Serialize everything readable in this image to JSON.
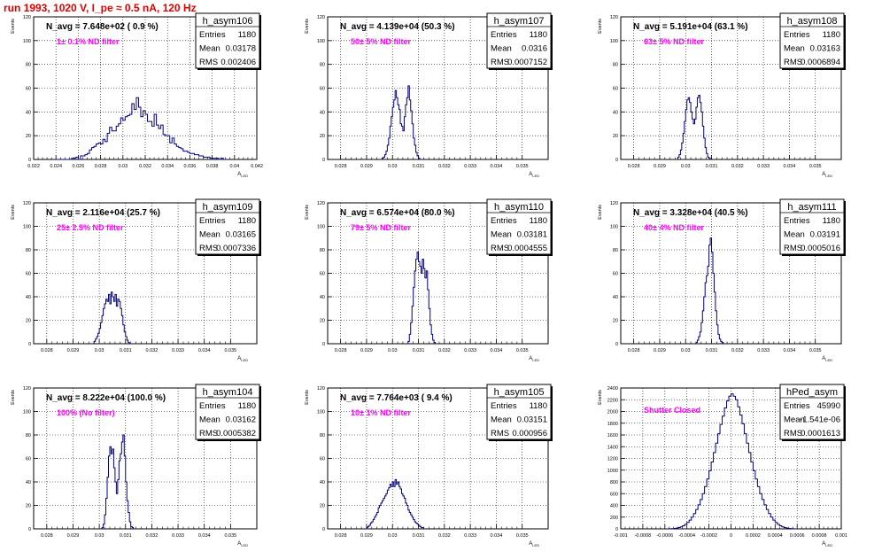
{
  "page_title": "run 1993,  1020 V, I_pe ≈ 0.5 nA, 120 Hz",
  "chart_data": [
    {
      "type": "histogram",
      "title": "h_asym106",
      "navg": "N_avg = 7.648e+02 ( 0.9 %)",
      "note": "1± 0.1% ND filter",
      "stats": {
        "Entries": "1180",
        "Mean": "0.03178",
        "RMS": "0.002406"
      },
      "ylabel": "Events",
      "xlabel": "A_LED",
      "xlim": [
        0.022,
        0.042
      ],
      "ylim": [
        0,
        120
      ],
      "xticks": [
        "0.022",
        "0.024",
        "0.026",
        "0.028",
        "0.03",
        "0.032",
        "0.034",
        "0.036",
        "0.038",
        "0.04",
        "0.042"
      ],
      "yticks": [
        "0",
        "20",
        "40",
        "60",
        "80",
        "100",
        "120"
      ],
      "bins": {
        "start": 0.024,
        "width": 0.0002,
        "values": [
          0,
          0,
          0,
          0,
          0,
          0,
          0,
          1,
          1,
          2,
          0,
          3,
          3,
          4,
          5,
          8,
          10,
          11,
          13,
          14,
          13,
          17,
          15,
          22,
          27,
          24,
          24,
          28,
          30,
          35,
          33,
          36,
          37,
          38,
          47,
          42,
          52,
          44,
          36,
          41,
          38,
          32,
          32,
          28,
          38,
          29,
          26,
          29,
          21,
          20,
          20,
          14,
          18,
          13,
          11,
          10,
          9,
          7,
          7,
          6,
          5,
          5,
          4,
          4,
          3,
          3,
          2,
          2,
          2,
          1,
          1,
          1,
          1,
          0,
          1,
          0
        ]
      }
    },
    {
      "type": "histogram",
      "title": "h_asym107",
      "navg": "N_avg = 4.139e+04 (50.3 %)",
      "note": "50± 5% ND filter",
      "stats": {
        "Entries": "1180",
        "Mean": "0.0316",
        "RMS": "0.0007152"
      },
      "ylabel": "Events",
      "xlabel": "A_LED",
      "xlim": [
        0.0275,
        0.036
      ],
      "ylim": [
        0,
        120
      ],
      "xticks": [
        "0.028",
        "0.029",
        "0.03",
        "0.031",
        "0.032",
        "0.033",
        "0.034",
        "0.035"
      ],
      "yticks": [
        "0",
        "20",
        "40",
        "60",
        "80",
        "100",
        "120"
      ],
      "bins": {
        "start": 0.0296,
        "width": 5e-05,
        "values": [
          1,
          2,
          4,
          7,
          12,
          18,
          28,
          36,
          44,
          50,
          58,
          52,
          46,
          42,
          30,
          28,
          24,
          36,
          46,
          52,
          62,
          50,
          41,
          30,
          18,
          12,
          6,
          3,
          1
        ]
      }
    },
    {
      "type": "histogram",
      "title": "h_asym108",
      "navg": "N_avg = 5.191e+04 (63.1 %)",
      "note": "63± 5% ND filter",
      "stats": {
        "Entries": "1180",
        "Mean": "0.03163",
        "RMS": "0.0006894"
      },
      "ylabel": "Events",
      "xlabel": "A_LED",
      "xlim": [
        0.0275,
        0.036
      ],
      "ylim": [
        0,
        120
      ],
      "xticks": [
        "0.028",
        "0.029",
        "0.03",
        "0.031",
        "0.032",
        "0.033",
        "0.034",
        "0.035"
      ],
      "yticks": [
        "0",
        "20",
        "40",
        "60",
        "80",
        "100",
        "120"
      ],
      "bins": {
        "start": 0.0297,
        "width": 5e-05,
        "values": [
          2,
          4,
          8,
          14,
          22,
          32,
          42,
          50,
          52,
          48,
          40,
          34,
          30,
          34,
          44,
          52,
          54,
          48,
          40,
          28,
          18,
          10,
          5,
          2,
          1
        ]
      }
    },
    {
      "type": "histogram",
      "title": "h_asym109",
      "navg": "N_avg = 2.116e+04 (25.7 %)",
      "note": "25± 2.5% ND filter",
      "stats": {
        "Entries": "1180",
        "Mean": "0.03165",
        "RMS": "0.0007336"
      },
      "ylabel": "Events",
      "xlabel": "A_LED",
      "xlim": [
        0.0275,
        0.036
      ],
      "ylim": [
        0,
        120
      ],
      "xticks": [
        "0.028",
        "0.029",
        "0.03",
        "0.031",
        "0.032",
        "0.033",
        "0.034",
        "0.035"
      ],
      "yticks": [
        "0",
        "20",
        "40",
        "60",
        "80",
        "100",
        "120"
      ],
      "bins": {
        "start": 0.0298,
        "width": 5e-05,
        "values": [
          2,
          4,
          6,
          9,
          13,
          18,
          24,
          30,
          34,
          38,
          36,
          42,
          34,
          44,
          40,
          36,
          42,
          32,
          38,
          36,
          30,
          24,
          16,
          10,
          6,
          3,
          1
        ]
      }
    },
    {
      "type": "histogram",
      "title": "h_asym110",
      "navg": "N_avg = 6.574e+04 (80.0 %)",
      "note": "79± 5% ND filter",
      "stats": {
        "Entries": "1180",
        "Mean": "0.03181",
        "RMS": "0.0004555"
      },
      "ylabel": "Events",
      "xlabel": "A_LED",
      "xlim": [
        0.0275,
        0.036
      ],
      "ylim": [
        0,
        120
      ],
      "xticks": [
        "0.028",
        "0.029",
        "0.03",
        "0.031",
        "0.032",
        "0.033",
        "0.034",
        "0.035"
      ],
      "yticks": [
        "0",
        "20",
        "40",
        "60",
        "80",
        "100",
        "120"
      ],
      "bins": {
        "start": 0.0306,
        "width": 5e-05,
        "values": [
          2,
          8,
          18,
          32,
          48,
          62,
          72,
          78,
          70,
          66,
          60,
          72,
          64,
          56,
          62,
          46,
          30,
          16,
          8,
          3,
          1
        ]
      }
    },
    {
      "type": "histogram",
      "title": "h_asym111",
      "navg": "N_avg = 3.328e+04 (40.5 %)",
      "note": "40± 4% ND filter",
      "stats": {
        "Entries": "1180",
        "Mean": "0.03191",
        "RMS": "0.0005016"
      },
      "ylabel": "Events",
      "xlabel": "A_LED",
      "xlim": [
        0.0275,
        0.036
      ],
      "ylim": [
        0,
        120
      ],
      "xticks": [
        "0.028",
        "0.029",
        "0.03",
        "0.031",
        "0.032",
        "0.033",
        "0.034",
        "0.035"
      ],
      "yticks": [
        "0",
        "20",
        "40",
        "60",
        "80",
        "100",
        "120"
      ],
      "bins": {
        "start": 0.0304,
        "width": 5e-05,
        "values": [
          1,
          3,
          6,
          10,
          18,
          28,
          40,
          52,
          58,
          66,
          84,
          90,
          78,
          60,
          44,
          28,
          16,
          8,
          4,
          2,
          1
        ]
      }
    },
    {
      "type": "histogram",
      "title": "h_asym104",
      "navg": "N_avg = 8.222e+04 (100.0 %)",
      "note": "100% (No filter)",
      "stats": {
        "Entries": "1180",
        "Mean": "0.03162",
        "RMS": "0.0005382"
      },
      "ylabel": "Events",
      "xlabel": "A_LED",
      "xlim": [
        0.0275,
        0.036
      ],
      "ylim": [
        0,
        120
      ],
      "xticks": [
        "0.028",
        "0.029",
        "0.03",
        "0.031",
        "0.032",
        "0.033",
        "0.034",
        "0.035"
      ],
      "yticks": [
        "0",
        "20",
        "40",
        "60",
        "80",
        "100",
        "120"
      ],
      "bins": {
        "start": 0.0301,
        "width": 5e-05,
        "values": [
          1,
          4,
          12,
          26,
          44,
          62,
          70,
          64,
          68,
          52,
          40,
          30,
          42,
          58,
          64,
          74,
          80,
          62,
          40,
          24,
          14,
          6,
          2,
          1
        ]
      }
    },
    {
      "type": "histogram",
      "title": "h_asym105",
      "navg": "N_avg = 7.764e+03 ( 9.4 %)",
      "note": "10± 1% ND filter",
      "stats": {
        "Entries": "1180",
        "Mean": "0.03151",
        "RMS": "0.000956"
      },
      "ylabel": "Events",
      "xlabel": "A_LED",
      "xlim": [
        0.0275,
        0.036
      ],
      "ylim": [
        0,
        120
      ],
      "xticks": [
        "0.028",
        "0.029",
        "0.03",
        "0.031",
        "0.032",
        "0.033",
        "0.034",
        "0.035"
      ],
      "yticks": [
        "0",
        "20",
        "40",
        "60",
        "80",
        "100",
        "120"
      ],
      "bins": {
        "start": 0.029,
        "width": 5e-05,
        "values": [
          1,
          2,
          3,
          5,
          6,
          8,
          10,
          12,
          14,
          18,
          20,
          22,
          24,
          26,
          28,
          30,
          33,
          35,
          38,
          36,
          40,
          36,
          42,
          38,
          40,
          36,
          34,
          30,
          28,
          26,
          22,
          20,
          16,
          14,
          12,
          10,
          8,
          6,
          5,
          4,
          3,
          2,
          1,
          1
        ]
      }
    },
    {
      "type": "histogram",
      "title": "hPed_asym",
      "navg": "",
      "note": "Shutter Closed",
      "stats": {
        "Entries": "45990",
        "Mean": "-1.541e-06",
        "RMS": "0.0001613"
      },
      "ylabel": "Events",
      "xlabel": "A_LED",
      "xlim": [
        -0.001,
        0.001
      ],
      "ylim": [
        0,
        2400
      ],
      "xticks": [
        "-0.001",
        "-0.0008",
        "-0.0006",
        "-0.0004",
        "-0.0002",
        "0",
        "0.0002",
        "0.0004",
        "0.0006",
        "0.0008",
        "0.001"
      ],
      "yticks": [
        "0",
        "200",
        "400",
        "600",
        "800",
        "1000",
        "1200",
        "1400",
        "1600",
        "1800",
        "2000",
        "2200",
        "2400"
      ],
      "bins": {
        "start": -0.00056,
        "width": 2e-05,
        "values": [
          2,
          4,
          8,
          14,
          22,
          34,
          52,
          78,
          110,
          150,
          200,
          260,
          330,
          410,
          500,
          600,
          720,
          850,
          990,
          1140,
          1300,
          1460,
          1620,
          1780,
          1920,
          2060,
          2180,
          2260,
          2300,
          2260,
          2200,
          2080,
          1940,
          1790,
          1620,
          1460,
          1300,
          1140,
          990,
          850,
          720,
          600,
          500,
          410,
          330,
          260,
          200,
          150,
          110,
          78,
          52,
          34,
          22,
          14,
          8,
          4,
          2
        ]
      }
    }
  ]
}
